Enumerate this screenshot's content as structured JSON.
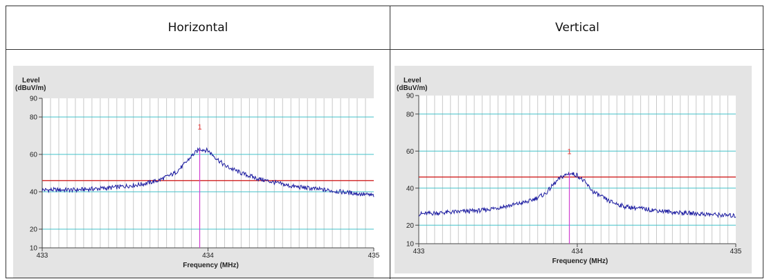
{
  "table": {
    "headers": [
      "Horizontal",
      "Vertical"
    ]
  },
  "colors": {
    "panel_bg": "#e4e4e4",
    "plot_bg": "#ffffff",
    "vgrid": "#c8c8c8",
    "hgrid": "#40c0c8",
    "limit": "#d02020",
    "trace": "#1a1aa0",
    "marker": "#d040d0",
    "marker_label": "#e03030"
  },
  "chart_data": [
    {
      "type": "line",
      "title": "Horizontal",
      "ylabel_line1": "Level",
      "ylabel_line2": "(dBuV/m)",
      "xlabel": "Frequency (MHz)",
      "xlim": [
        433,
        435
      ],
      "ylim": [
        10,
        90
      ],
      "x_ticks": [
        "433",
        "434",
        "435"
      ],
      "y_ticks": [
        10,
        20,
        40,
        60,
        80,
        90
      ],
      "y_tick_labels": [
        "10",
        "20",
        "40",
        "60",
        "80",
        "90"
      ],
      "hgrid_values": [
        20,
        40,
        60,
        80
      ],
      "limit_line": 46,
      "marker": {
        "label": "1",
        "x": 433.95,
        "y": 63
      },
      "series": [
        {
          "x": [
            433.0,
            433.2,
            433.4,
            433.6,
            433.7,
            433.8,
            433.85,
            433.9,
            433.95,
            434.0,
            434.05,
            434.1,
            434.2,
            434.3,
            434.4,
            434.5,
            434.6,
            434.8,
            435.0
          ],
          "y": [
            41,
            41,
            42,
            44,
            46,
            50,
            54,
            59,
            63,
            62,
            58,
            54,
            50,
            47,
            45,
            43,
            42,
            40,
            38
          ]
        }
      ]
    },
    {
      "type": "line",
      "title": "Vertical",
      "ylabel_line1": "Level",
      "ylabel_line2": "(dBuV/m)",
      "xlabel": "Frequency (MHz)",
      "xlim": [
        433,
        435
      ],
      "ylim": [
        10,
        90
      ],
      "x_ticks": [
        "433",
        "434",
        "435"
      ],
      "y_ticks": [
        10,
        20,
        40,
        60,
        80,
        90
      ],
      "y_tick_labels": [
        "10",
        "20",
        "40",
        "60",
        "80",
        "90"
      ],
      "hgrid_values": [
        20,
        40,
        60,
        80
      ],
      "limit_line": 46,
      "marker": {
        "label": "1",
        "x": 433.95,
        "y": 48
      },
      "series": [
        {
          "x": [
            433.0,
            433.2,
            433.4,
            433.6,
            433.7,
            433.8,
            433.85,
            433.9,
            433.95,
            434.0,
            434.05,
            434.1,
            434.2,
            434.3,
            434.4,
            434.5,
            434.6,
            434.8,
            435.0
          ],
          "y": [
            26,
            27,
            28,
            31,
            33,
            37,
            42,
            46,
            48,
            47,
            43,
            38,
            33,
            30,
            29,
            28,
            27,
            26,
            25
          ]
        }
      ]
    }
  ]
}
